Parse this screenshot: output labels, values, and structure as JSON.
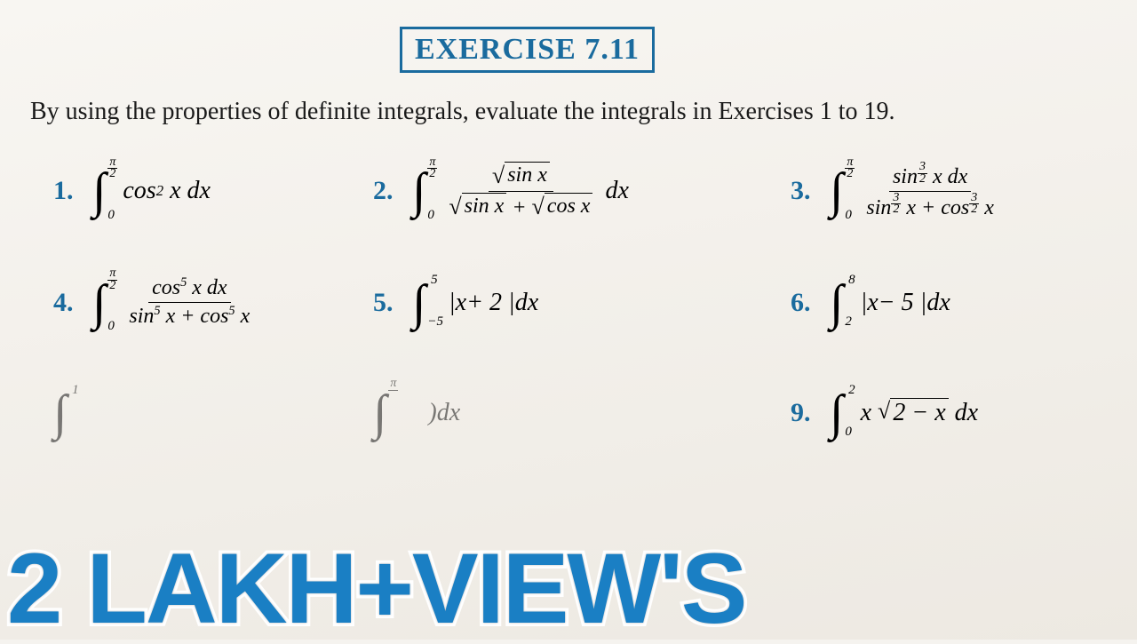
{
  "title": "EXERCISE 7.11",
  "instruction": "By using the properties of definite integrals, evaluate the integrals in Exercises 1 to 19.",
  "overlay_text": "2 LAKH+VIEW'S",
  "colors": {
    "title_blue": "#1a6b9e",
    "overlay_blue": "#1a7fc4",
    "page_bg": "#f5f3ef",
    "text": "#1a1a1a"
  },
  "problems": {
    "p1": {
      "num": "1."
    },
    "p2": {
      "num": "2."
    },
    "p3": {
      "num": "3."
    },
    "p4": {
      "num": "4."
    },
    "p5": {
      "num": "5."
    },
    "p6": {
      "num": "6."
    },
    "p8": {
      "num": ""
    },
    "p9": {
      "num": "9."
    }
  }
}
